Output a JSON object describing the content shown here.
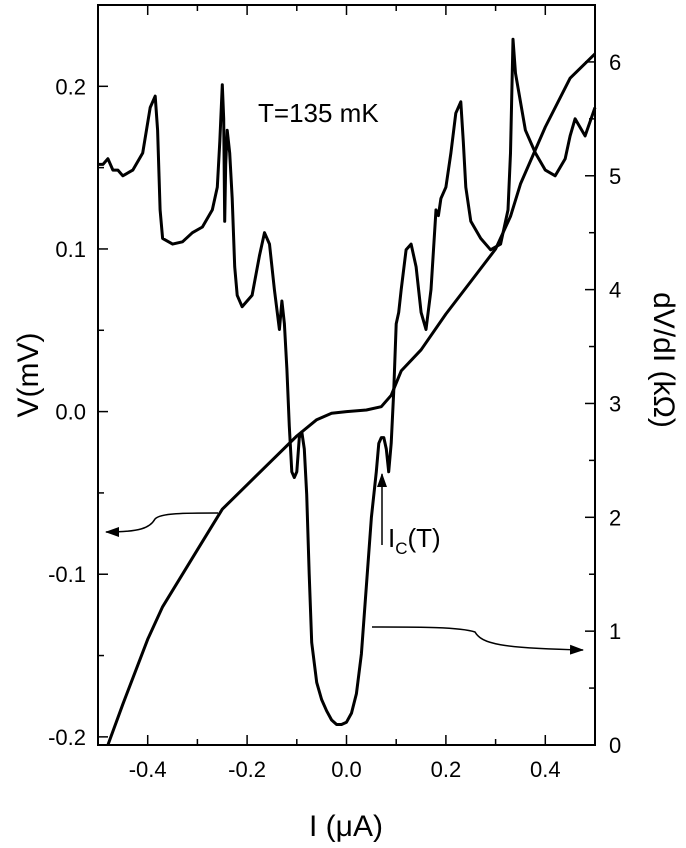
{
  "chart_data": {
    "type": "line",
    "annotation": "T=135 mK",
    "xlabel": "I (μA)",
    "ylabel": "V(mV)",
    "y2label": "dV/dI (kΩ)",
    "ic_label_main": "I",
    "ic_label_sub": "C",
    "ic_label_tail": "(T)",
    "xlim": [
      -0.5,
      0.5
    ],
    "ylim": [
      -0.205,
      0.25
    ],
    "y2lim": [
      0,
      6.5
    ],
    "xticks": [
      "-0.4",
      "-0.2",
      "0.0",
      "0.2",
      "0.4"
    ],
    "xtick_values": [
      -0.4,
      -0.2,
      0.0,
      0.2,
      0.4
    ],
    "yticks": [
      "-0.2",
      "-0.1",
      "0.0",
      "0.1",
      "0.2"
    ],
    "ytick_values": [
      -0.2,
      -0.1,
      0.0,
      0.1,
      0.2
    ],
    "y2ticks": [
      "0",
      "1",
      "2",
      "3",
      "4",
      "5",
      "6"
    ],
    "y2tick_values": [
      0,
      1,
      2,
      3,
      4,
      5,
      6
    ],
    "series": [
      {
        "axis": "left",
        "x": [
          -0.48,
          -0.45,
          -0.4,
          -0.37,
          -0.3,
          -0.25,
          -0.2,
          -0.15,
          -0.1,
          -0.06,
          -0.03,
          0.0,
          0.04,
          0.07,
          0.09,
          0.11,
          0.15,
          0.2,
          0.25,
          0.3,
          0.33,
          0.35,
          0.4,
          0.45,
          0.5
        ],
        "y": [
          -0.205,
          -0.18,
          -0.14,
          -0.12,
          -0.085,
          -0.06,
          -0.045,
          -0.03,
          -0.015,
          -0.005,
          -0.001,
          0.0,
          0.001,
          0.003,
          0.01,
          0.025,
          0.038,
          0.06,
          0.08,
          0.1,
          0.12,
          0.14,
          0.175,
          0.205,
          0.22
        ]
      },
      {
        "axis": "right",
        "x": [
          -0.5,
          -0.49,
          -0.48,
          -0.47,
          -0.46,
          -0.45,
          -0.43,
          -0.41,
          -0.395,
          -0.385,
          -0.38,
          -0.375,
          -0.37,
          -0.35,
          -0.33,
          -0.31,
          -0.29,
          -0.27,
          -0.26,
          -0.255,
          -0.25,
          -0.247,
          -0.245,
          -0.243,
          -0.24,
          -0.235,
          -0.23,
          -0.225,
          -0.22,
          -0.21,
          -0.19,
          -0.175,
          -0.165,
          -0.155,
          -0.145,
          -0.135,
          -0.13,
          -0.125,
          -0.12,
          -0.115,
          -0.11,
          -0.105,
          -0.1,
          -0.095,
          -0.09,
          -0.085,
          -0.08,
          -0.075,
          -0.07,
          -0.06,
          -0.05,
          -0.04,
          -0.03,
          -0.02,
          -0.01,
          0.0,
          0.01,
          0.02,
          0.03,
          0.04,
          0.05,
          0.06,
          0.065,
          0.07,
          0.075,
          0.08,
          0.085,
          0.09,
          0.095,
          0.1,
          0.105,
          0.11,
          0.12,
          0.13,
          0.14,
          0.15,
          0.16,
          0.17,
          0.18,
          0.185,
          0.19,
          0.2,
          0.21,
          0.22,
          0.23,
          0.235,
          0.24,
          0.25,
          0.27,
          0.29,
          0.31,
          0.325,
          0.33,
          0.335,
          0.34,
          0.36,
          0.38,
          0.4,
          0.42,
          0.44,
          0.45,
          0.46,
          0.48,
          0.5
        ],
        "y": [
          5.1,
          5.1,
          5.15,
          5.05,
          5.05,
          5.0,
          5.05,
          5.2,
          5.6,
          5.7,
          5.4,
          4.7,
          4.45,
          4.4,
          4.42,
          4.5,
          4.55,
          4.7,
          4.9,
          5.3,
          5.8,
          5.5,
          4.6,
          5.1,
          5.4,
          5.2,
          4.8,
          4.2,
          3.95,
          3.85,
          3.95,
          4.3,
          4.5,
          4.4,
          4.0,
          3.65,
          3.9,
          3.7,
          3.3,
          2.8,
          2.4,
          2.35,
          2.4,
          2.7,
          2.75,
          2.6,
          2.2,
          1.5,
          0.9,
          0.55,
          0.4,
          0.3,
          0.22,
          0.18,
          0.18,
          0.2,
          0.28,
          0.45,
          0.8,
          1.4,
          2.0,
          2.4,
          2.65,
          2.7,
          2.7,
          2.6,
          2.4,
          2.65,
          3.1,
          3.7,
          3.8,
          4.0,
          4.35,
          4.4,
          4.2,
          3.8,
          3.65,
          4.0,
          4.7,
          4.65,
          4.8,
          4.9,
          5.2,
          5.55,
          5.65,
          5.3,
          4.9,
          4.6,
          4.45,
          4.35,
          4.4,
          4.7,
          5.2,
          6.2,
          5.9,
          5.4,
          5.2,
          5.05,
          5.0,
          5.15,
          5.35,
          5.5,
          5.35,
          5.6
        ]
      }
    ]
  }
}
